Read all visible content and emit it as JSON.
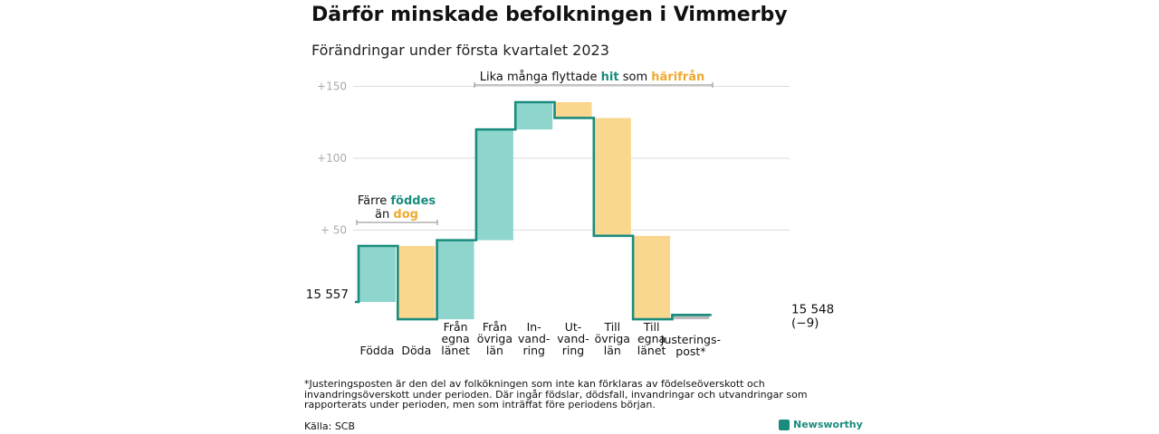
{
  "title": "Därför minskade befolkningen i Vimmerby",
  "subtitle": "Förändringar under första kvartalet 2023",
  "chart_data": {
    "type": "waterfall",
    "start_label": "15 557",
    "end_label": "15 548",
    "end_change": "(−9)",
    "start_value": 0,
    "ylim": [
      0,
      158
    ],
    "yticks": [
      {
        "v": 50,
        "label": "+ 50"
      },
      {
        "v": 100,
        "label": "+100"
      },
      {
        "v": 150,
        "label": "+150"
      }
    ],
    "steps": [
      {
        "label": [
          "Födda"
        ],
        "delta": 39,
        "kind": "in"
      },
      {
        "label": [
          "Döda"
        ],
        "delta": -51,
        "kind": "out"
      },
      {
        "label": [
          "Från",
          "egna",
          "länet"
        ],
        "delta": 55,
        "kind": "in"
      },
      {
        "label": [
          "Från",
          "övriga",
          "län"
        ],
        "delta": 77,
        "kind": "in"
      },
      {
        "label": [
          "In-",
          "vand-",
          "ring"
        ],
        "delta": 19,
        "kind": "in"
      },
      {
        "label": [
          "Ut-",
          "vand-",
          "ring"
        ],
        "delta": -11,
        "kind": "out"
      },
      {
        "label": [
          "Till",
          "övriga",
          "län"
        ],
        "delta": -82,
        "kind": "out"
      },
      {
        "label": [
          "Till",
          "egna",
          "länet"
        ],
        "delta": -58,
        "kind": "out"
      },
      {
        "label": [
          "Justerings-",
          "post*"
        ],
        "delta": 3,
        "kind": "adj"
      }
    ],
    "annotations": {
      "born": {
        "line1": "Färre",
        "hl1": "föddes",
        "line2": "än",
        "hl2": "dog"
      },
      "moved": {
        "pre": "Lika många flyttade",
        "hl1": "hit",
        "mid": "som",
        "hl2": "härifrån"
      }
    },
    "colors": {
      "in": "#8ed6cd",
      "out": "#fad78f",
      "line": "#1a8c7e",
      "adj": "#bbbbbb",
      "hl_in": "#1a8c7e",
      "hl_out": "#f0a830",
      "grid": "#dddddd",
      "tick": "#aaaaaa"
    }
  },
  "footnote": "*Justeringsposten är den del av folkökningen som inte kan förklaras av födelseöverskott och invandringsöverskott under perioden. Där ingår födslar, dödsfall, invandringar och utvandringar som rapporterats under perioden, men som inträffat före periodens början.",
  "source": "Källa: SCB",
  "brand": "Newsworthy"
}
